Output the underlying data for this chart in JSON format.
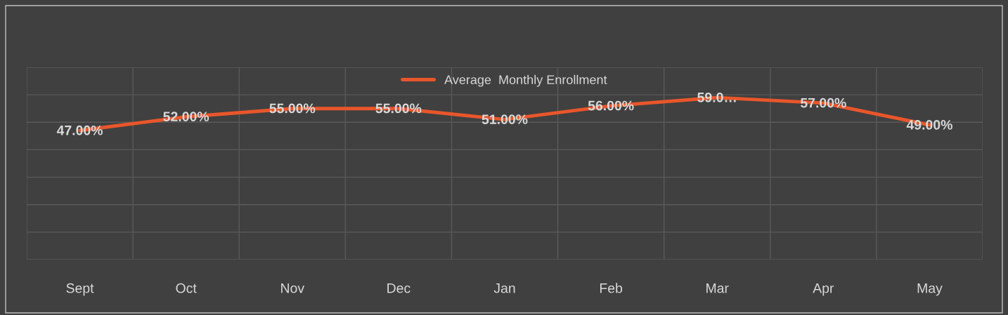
{
  "chart_data": {
    "type": "line",
    "categories": [
      "Sept",
      "Oct",
      "Nov",
      "Dec",
      "Jan",
      "Feb",
      "Mar",
      "Apr",
      "May"
    ],
    "series": [
      {
        "name": "Average  Monthly Enrollment",
        "color": "#e9562b",
        "values": [
          47,
          52,
          55,
          55,
          51,
          56,
          59,
          57,
          49
        ],
        "value_labels": [
          "47.00%",
          "52.00%",
          "55.00%",
          "55.00%",
          "51.00%",
          "56.00%",
          "59.0…",
          "57.00%",
          "49.00%"
        ]
      }
    ],
    "ylim": [
      0,
      70
    ],
    "yticks": [
      {
        "value": 0,
        "label": null
      },
      {
        "value": 10,
        "label": null
      },
      {
        "value": 20,
        "label": null
      },
      {
        "value": 30,
        "label": null
      },
      {
        "value": 40,
        "label": null
      },
      {
        "value": 50,
        "label": null
      },
      {
        "value": 60,
        "label": null
      },
      {
        "value": 70,
        "label": null
      }
    ],
    "grid": true,
    "legend": "top",
    "marker": "none",
    "line_style": "solid"
  }
}
